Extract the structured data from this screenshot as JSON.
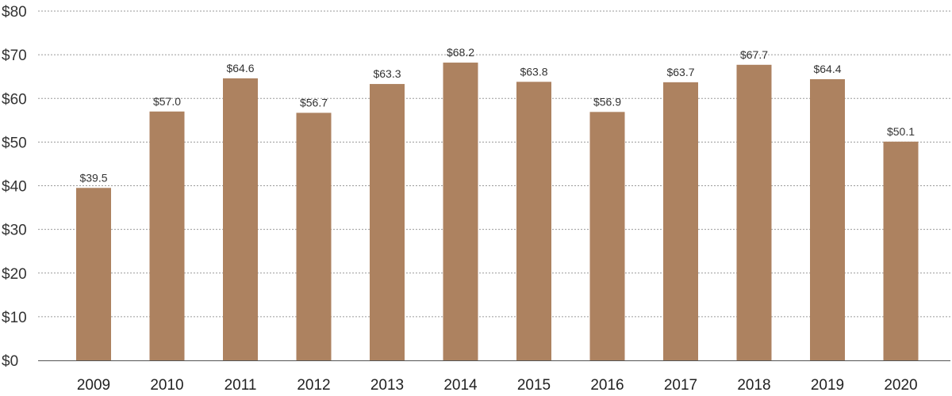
{
  "chart_data": {
    "type": "bar",
    "title": "",
    "xlabel": "",
    "ylabel": "",
    "categories": [
      "2009",
      "2010",
      "2011",
      "2012",
      "2013",
      "2014",
      "2015",
      "2016",
      "2017",
      "2018",
      "2019",
      "2020"
    ],
    "values": [
      39.5,
      57.0,
      64.6,
      56.7,
      63.3,
      68.2,
      63.8,
      56.9,
      63.7,
      67.7,
      64.4,
      50.1
    ],
    "data_labels": [
      "$39.5",
      "$57.0",
      "$64.6",
      "$56.7",
      "$63.3",
      "$68.2",
      "$63.8",
      "$56.9",
      "$63.7",
      "$67.7",
      "$64.4",
      "$50.1"
    ],
    "y_ticks": [
      0,
      10,
      20,
      30,
      40,
      50,
      60,
      70,
      80
    ],
    "y_tick_labels": [
      "$0",
      "$10",
      "$20",
      "$30",
      "$40",
      "$50",
      "$60",
      "$70",
      "$80"
    ],
    "ylim": [
      0,
      80
    ],
    "grid": true,
    "grid_style": "dotted",
    "legend": "none",
    "colors": {
      "bar": "#ad8260",
      "grid": "#9a9a9a",
      "axis": "#555555"
    }
  }
}
